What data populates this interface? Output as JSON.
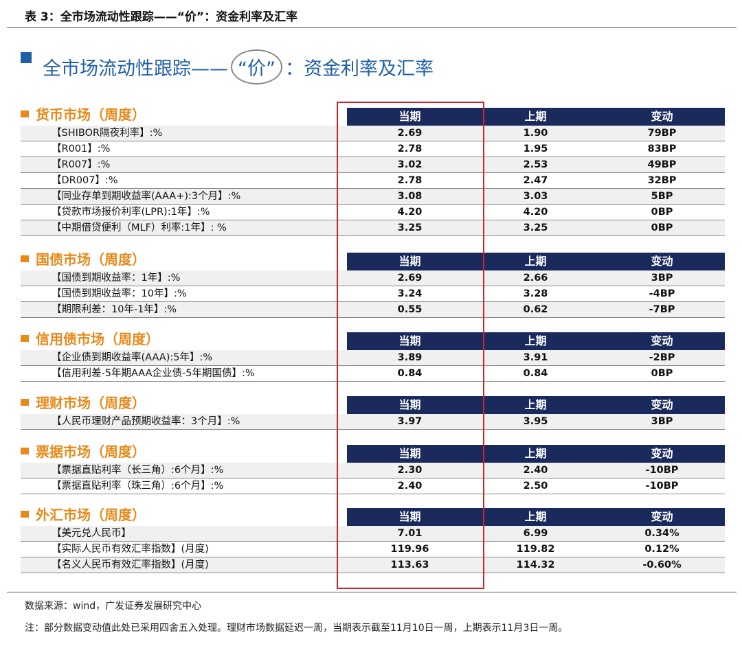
{
  "caption": "表 3：全市场流动性跟踪——“价”：资金利率及汇率",
  "title": {
    "before": "全市场流动性跟踪——",
    "circled": "“价”",
    "after": "：资金利率及汇率"
  },
  "sections": [
    {
      "title": "货币市场（周度）",
      "header": [
        "当期",
        "上期",
        "变动"
      ],
      "rows": [
        [
          "【SHIBOR隔夜利率】:%",
          "2.69",
          "1.90",
          "79BP"
        ],
        [
          "【R001】:%",
          "2.78",
          "1.95",
          "83BP"
        ],
        [
          "【R007】:%",
          "3.02",
          "2.53",
          "49BP"
        ],
        [
          "【DR007】:%",
          "2.78",
          "2.47",
          "32BP"
        ],
        [
          "【同业存单到期收益率(AAA+):3个月】:%",
          "3.08",
          "3.03",
          "5BP"
        ],
        [
          "【贷款市场报价利率(LPR):1年】:%",
          "4.20",
          "4.20",
          "0BP"
        ],
        [
          "【中期借贷便利（MLF）利率:1年】: %",
          "3.25",
          "3.25",
          "0BP"
        ]
      ]
    },
    {
      "title": "国债市场（周度）",
      "header": [
        "当期",
        "上期",
        "变动"
      ],
      "rows": [
        [
          "【国债到期收益率：1年】:%",
          "2.69",
          "2.66",
          "3BP"
        ],
        [
          "【国债到期收益率：10年】:%",
          "3.24",
          "3.28",
          "-4BP"
        ],
        [
          "【期限利差：10年-1年】:%",
          "0.55",
          "0.62",
          "-7BP"
        ]
      ]
    },
    {
      "title": "信用债市场（周度）",
      "header": [
        "当期",
        "上期",
        "变动"
      ],
      "rows": [
        [
          "【企业债到期收益率(AAA):5年】:%",
          "3.89",
          "3.91",
          "-2BP"
        ],
        [
          "【信用利差-5年期AAA企业债-5年期国债】:%",
          "0.84",
          "0.84",
          "0BP"
        ]
      ]
    },
    {
      "title": "理财市场（周度）",
      "header": [
        "当期",
        "上期",
        "变动"
      ],
      "rows": [
        [
          "【人民币理财产品预期收益率：3个月】:%",
          "3.97",
          "3.95",
          "3BP"
        ]
      ]
    },
    {
      "title": "票据市场（周度）",
      "header": [
        "当期",
        "上期",
        "变动"
      ],
      "rows": [
        [
          "【票据直贴利率（长三角）:6个月】:%",
          "2.30",
          "2.40",
          "-10BP"
        ],
        [
          "【票据直贴利率（珠三角）:6个月】:%",
          "2.40",
          "2.50",
          "-10BP"
        ]
      ]
    },
    {
      "title": "外汇市场（周度）",
      "header": [
        "当期",
        "上期",
        "变动"
      ],
      "rows": [
        [
          "【美元兑人民币】",
          "7.01",
          "6.99",
          "0.34%"
        ],
        [
          "【实际人民币有效汇率指数】(月度)",
          "119.96",
          "119.82",
          "0.12%"
        ],
        [
          "【名义人民币有效汇率指数】(月度)",
          "113.63",
          "114.32",
          "-0.60%"
        ]
      ]
    }
  ],
  "source": "数据来源：wind，广发证券发展研究中心",
  "note": "注：部分数据变动值此处已采用四舍五入处理。理财市场数据延迟一周，当期表示截至11月10日一周，上期表示11月3日一周。"
}
